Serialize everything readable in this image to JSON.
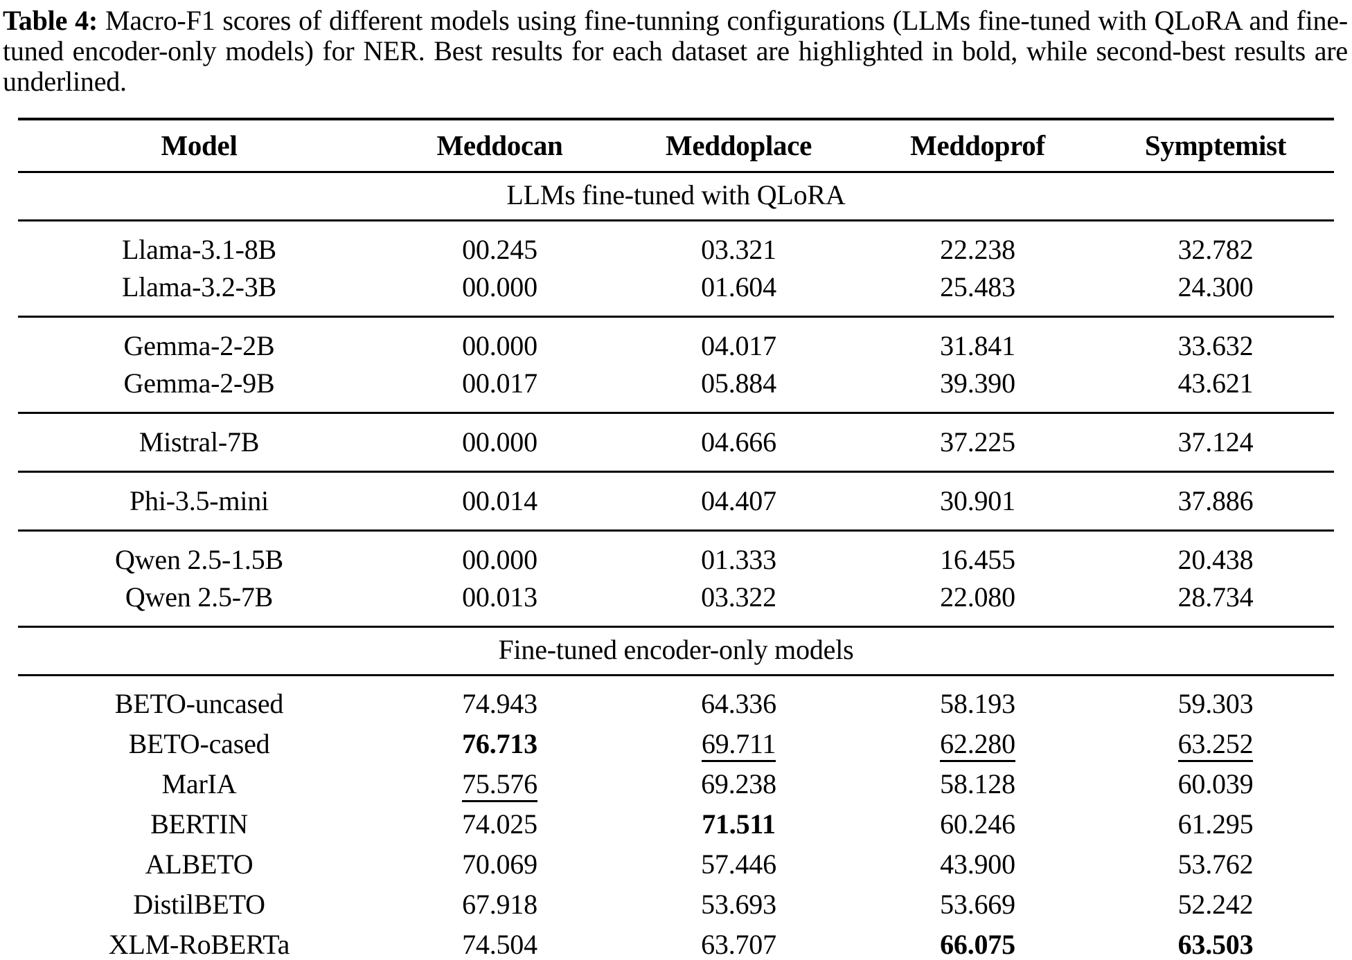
{
  "caption": {
    "label": "Table 4:",
    "text": " Macro-F1 scores of different models using fine-tunning configurations (LLMs fine-tuned with QLoRA and fine-tuned encoder-only models) for NER. Best results for each dataset are highlighted in bold, while second-best results are underlined."
  },
  "table": {
    "columns": [
      "Model",
      "Meddocan",
      "Meddoplace",
      "Meddoprof",
      "Symptemist"
    ],
    "emphasis_legend": {
      "bold": "best result",
      "underline": "second-best result"
    },
    "sections": [
      {
        "title": "LLMs fine-tuned with QLoRA",
        "groups": [
          {
            "rows": [
              {
                "model": "Llama-3.1-8B",
                "values": [
                  {
                    "text": "00.245",
                    "style": "normal"
                  },
                  {
                    "text": "03.321",
                    "style": "normal"
                  },
                  {
                    "text": "22.238",
                    "style": "normal"
                  },
                  {
                    "text": "32.782",
                    "style": "normal"
                  }
                ]
              },
              {
                "model": "Llama-3.2-3B",
                "values": [
                  {
                    "text": "00.000",
                    "style": "normal"
                  },
                  {
                    "text": "01.604",
                    "style": "normal"
                  },
                  {
                    "text": "25.483",
                    "style": "normal"
                  },
                  {
                    "text": "24.300",
                    "style": "normal"
                  }
                ]
              }
            ]
          },
          {
            "rows": [
              {
                "model": "Gemma-2-2B",
                "values": [
                  {
                    "text": "00.000",
                    "style": "normal"
                  },
                  {
                    "text": "04.017",
                    "style": "normal"
                  },
                  {
                    "text": "31.841",
                    "style": "normal"
                  },
                  {
                    "text": "33.632",
                    "style": "normal"
                  }
                ]
              },
              {
                "model": "Gemma-2-9B",
                "values": [
                  {
                    "text": "00.017",
                    "style": "normal"
                  },
                  {
                    "text": "05.884",
                    "style": "normal"
                  },
                  {
                    "text": "39.390",
                    "style": "normal"
                  },
                  {
                    "text": "43.621",
                    "style": "normal"
                  }
                ]
              }
            ]
          },
          {
            "rows": [
              {
                "model": "Mistral-7B",
                "values": [
                  {
                    "text": "00.000",
                    "style": "normal"
                  },
                  {
                    "text": "04.666",
                    "style": "normal"
                  },
                  {
                    "text": "37.225",
                    "style": "normal"
                  },
                  {
                    "text": "37.124",
                    "style": "normal"
                  }
                ]
              }
            ]
          },
          {
            "rows": [
              {
                "model": "Phi-3.5-mini",
                "values": [
                  {
                    "text": "00.014",
                    "style": "normal"
                  },
                  {
                    "text": "04.407",
                    "style": "normal"
                  },
                  {
                    "text": "30.901",
                    "style": "normal"
                  },
                  {
                    "text": "37.886",
                    "style": "normal"
                  }
                ]
              }
            ]
          },
          {
            "rows": [
              {
                "model": "Qwen 2.5-1.5B",
                "values": [
                  {
                    "text": "00.000",
                    "style": "normal"
                  },
                  {
                    "text": "01.333",
                    "style": "normal"
                  },
                  {
                    "text": "16.455",
                    "style": "normal"
                  },
                  {
                    "text": "20.438",
                    "style": "normal"
                  }
                ]
              },
              {
                "model": "Qwen 2.5-7B",
                "values": [
                  {
                    "text": "00.013",
                    "style": "normal"
                  },
                  {
                    "text": "03.322",
                    "style": "normal"
                  },
                  {
                    "text": "22.080",
                    "style": "normal"
                  },
                  {
                    "text": "28.734",
                    "style": "normal"
                  }
                ]
              }
            ]
          }
        ]
      },
      {
        "title": "Fine-tuned encoder-only models",
        "groups": [
          {
            "rows": [
              {
                "model": "BETO-uncased",
                "values": [
                  {
                    "text": "74.943",
                    "style": "normal"
                  },
                  {
                    "text": "64.336",
                    "style": "normal"
                  },
                  {
                    "text": "58.193",
                    "style": "normal"
                  },
                  {
                    "text": "59.303",
                    "style": "normal"
                  }
                ]
              },
              {
                "model": "BETO-cased",
                "values": [
                  {
                    "text": "76.713",
                    "style": "bold"
                  },
                  {
                    "text": "69.711",
                    "style": "underline"
                  },
                  {
                    "text": "62.280",
                    "style": "underline"
                  },
                  {
                    "text": "63.252",
                    "style": "underline"
                  }
                ]
              },
              {
                "model": "MarIA",
                "values": [
                  {
                    "text": "75.576",
                    "style": "underline"
                  },
                  {
                    "text": "69.238",
                    "style": "normal"
                  },
                  {
                    "text": "58.128",
                    "style": "normal"
                  },
                  {
                    "text": "60.039",
                    "style": "normal"
                  }
                ]
              },
              {
                "model": "BERTIN",
                "values": [
                  {
                    "text": "74.025",
                    "style": "normal"
                  },
                  {
                    "text": "71.511",
                    "style": "bold"
                  },
                  {
                    "text": "60.246",
                    "style": "normal"
                  },
                  {
                    "text": "61.295",
                    "style": "normal"
                  }
                ]
              },
              {
                "model": "ALBETO",
                "values": [
                  {
                    "text": "70.069",
                    "style": "normal"
                  },
                  {
                    "text": "57.446",
                    "style": "normal"
                  },
                  {
                    "text": "43.900",
                    "style": "normal"
                  },
                  {
                    "text": "53.762",
                    "style": "normal"
                  }
                ]
              },
              {
                "model": "DistilBETO",
                "values": [
                  {
                    "text": "67.918",
                    "style": "normal"
                  },
                  {
                    "text": "53.693",
                    "style": "normal"
                  },
                  {
                    "text": "53.669",
                    "style": "normal"
                  },
                  {
                    "text": "52.242",
                    "style": "normal"
                  }
                ]
              },
              {
                "model": "XLM-RoBERTa",
                "values": [
                  {
                    "text": "74.504",
                    "style": "normal"
                  },
                  {
                    "text": "63.707",
                    "style": "normal"
                  },
                  {
                    "text": "66.075",
                    "style": "bold"
                  },
                  {
                    "text": "63.503",
                    "style": "bold"
                  }
                ]
              }
            ]
          }
        ]
      }
    ]
  }
}
